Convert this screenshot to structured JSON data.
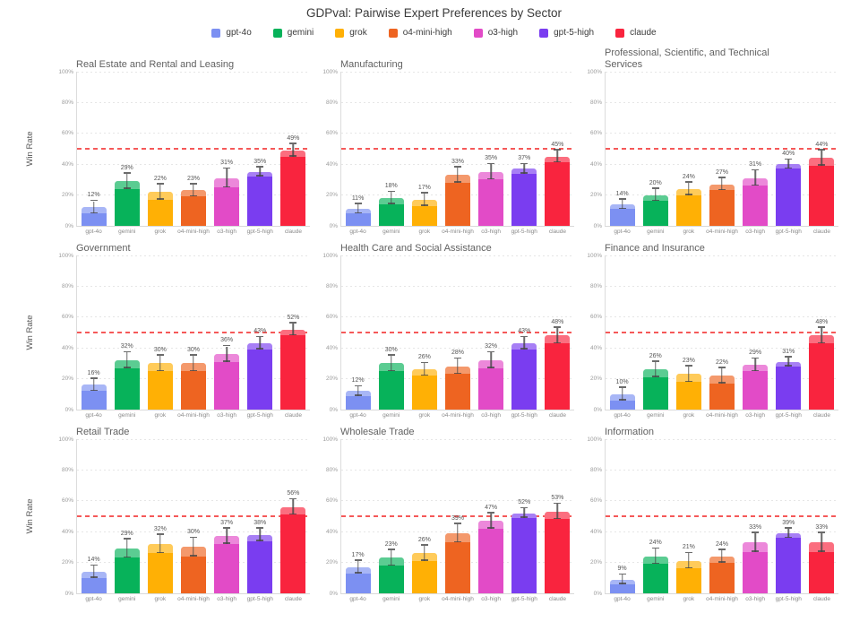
{
  "header": {
    "title": "GDPval: Pairwise Expert Preferences by Sector"
  },
  "legend": {
    "items": [
      {
        "label": "gpt-4o",
        "color": "#7C90F2"
      },
      {
        "label": "gemini",
        "color": "#07B25A"
      },
      {
        "label": "grok",
        "color": "#FFB005"
      },
      {
        "label": "o4-mini-high",
        "color": "#EE6421"
      },
      {
        "label": "o3-high",
        "color": "#E24BC7"
      },
      {
        "label": "gpt-5-high",
        "color": "#7A3DF0"
      },
      {
        "label": "claude",
        "color": "#F9243E"
      }
    ]
  },
  "colors": {
    "reference_line": "#F55959",
    "gridline": "#E6E6E6",
    "axis_line": "#DCDCDC",
    "tick_label": "#9B9B9B",
    "subplot_title": "#616161",
    "value_label": "#565656",
    "error_bar": "#464646"
  },
  "axes": {
    "y_label": "Win Rate",
    "y_ticks": [
      "0%",
      "20%",
      "40%",
      "60%",
      "80%",
      "100%"
    ],
    "y_lim": [
      0,
      100
    ],
    "reference_line_value": 50
  },
  "chart_data": [
    {
      "type": "bar",
      "title": "Real Estate and Rental and Leasing",
      "ylabel": "Win Rate",
      "ylim": [
        0,
        100
      ],
      "reference_line": 50,
      "grid": true,
      "categories": [
        "gpt-4o",
        "gemini",
        "grok",
        "o4-mini-high",
        "o3-high",
        "gpt-5-high",
        "claude"
      ],
      "values": [
        12,
        29,
        22,
        23,
        31,
        35,
        49
      ],
      "errors": [
        4,
        5,
        5,
        4,
        6,
        3,
        4
      ],
      "value_labels": [
        "12%",
        "29%",
        "22%",
        "23%",
        "31%",
        "35%",
        "49%"
      ]
    },
    {
      "type": "bar",
      "title": "Manufacturing",
      "ylabel": "Win Rate",
      "ylim": [
        0,
        100
      ],
      "reference_line": 50,
      "grid": true,
      "categories": [
        "gpt-4o",
        "gemini",
        "grok",
        "o4-mini-high",
        "o3-high",
        "gpt-5-high",
        "claude"
      ],
      "values": [
        11,
        18,
        17,
        33,
        35,
        37,
        45
      ],
      "errors": [
        3,
        4,
        4,
        5,
        5,
        3,
        4
      ],
      "value_labels": [
        "11%",
        "18%",
        "17%",
        "33%",
        "35%",
        "37%",
        "45%"
      ]
    },
    {
      "type": "bar",
      "title": "Professional, Scientific, and Technical Services",
      "ylabel": "Win Rate",
      "ylim": [
        0,
        100
      ],
      "reference_line": 50,
      "grid": true,
      "categories": [
        "gpt-4o",
        "gemini",
        "grok",
        "o4-mini-high",
        "o3-high",
        "gpt-5-high",
        "claude"
      ],
      "values": [
        14,
        20,
        24,
        27,
        31,
        40,
        44
      ],
      "errors": [
        3,
        4,
        4,
        4,
        5,
        3,
        5
      ],
      "value_labels": [
        "14%",
        "20%",
        "24%",
        "27%",
        "31%",
        "40%",
        "44%"
      ]
    },
    {
      "type": "bar",
      "title": "Government",
      "ylabel": "Win Rate",
      "ylim": [
        0,
        100
      ],
      "reference_line": 50,
      "grid": true,
      "categories": [
        "gpt-4o",
        "gemini",
        "grok",
        "o4-mini-high",
        "o3-high",
        "gpt-5-high",
        "claude"
      ],
      "values": [
        16,
        32,
        30,
        30,
        36,
        43,
        52
      ],
      "errors": [
        4,
        5,
        5,
        5,
        5,
        4,
        4
      ],
      "value_labels": [
        "16%",
        "32%",
        "30%",
        "30%",
        "36%",
        "43%",
        "52%"
      ]
    },
    {
      "type": "bar",
      "title": "Health Care and Social Assistance",
      "ylabel": "Win Rate",
      "ylim": [
        0,
        100
      ],
      "reference_line": 50,
      "grid": true,
      "categories": [
        "gpt-4o",
        "gemini",
        "grok",
        "o4-mini-high",
        "o3-high",
        "gpt-5-high",
        "claude"
      ],
      "values": [
        12,
        30,
        26,
        28,
        32,
        43,
        48
      ],
      "errors": [
        3,
        5,
        4,
        5,
        5,
        4,
        5
      ],
      "value_labels": [
        "12%",
        "30%",
        "26%",
        "28%",
        "32%",
        "43%",
        "48%"
      ]
    },
    {
      "type": "bar",
      "title": "Finance and Insurance",
      "ylabel": "Win Rate",
      "ylim": [
        0,
        100
      ],
      "reference_line": 50,
      "grid": true,
      "categories": [
        "gpt-4o",
        "gemini",
        "grok",
        "o4-mini-high",
        "o3-high",
        "gpt-5-high",
        "claude"
      ],
      "values": [
        10,
        26,
        23,
        22,
        29,
        31,
        48
      ],
      "errors": [
        4,
        5,
        5,
        5,
        4,
        3,
        5
      ],
      "value_labels": [
        "10%",
        "26%",
        "23%",
        "22%",
        "29%",
        "31%",
        "48%"
      ]
    },
    {
      "type": "bar",
      "title": "Retail Trade",
      "ylabel": "Win Rate",
      "ylim": [
        0,
        100
      ],
      "reference_line": 50,
      "grid": true,
      "categories": [
        "gpt-4o",
        "gemini",
        "grok",
        "o4-mini-high",
        "o3-high",
        "gpt-5-high",
        "claude"
      ],
      "values": [
        14,
        29,
        32,
        30,
        37,
        38,
        56
      ],
      "errors": [
        4,
        6,
        6,
        6,
        5,
        4,
        5
      ],
      "value_labels": [
        "14%",
        "29%",
        "32%",
        "30%",
        "37%",
        "38%",
        "56%"
      ]
    },
    {
      "type": "bar",
      "title": "Wholesale Trade",
      "ylabel": "Win Rate",
      "ylim": [
        0,
        100
      ],
      "reference_line": 50,
      "grid": true,
      "categories": [
        "gpt-4o",
        "gemini",
        "grok",
        "o4-mini-high",
        "o3-high",
        "gpt-5-high",
        "claude"
      ],
      "values": [
        17,
        23,
        26,
        39,
        47,
        52,
        53
      ],
      "errors": [
        4,
        5,
        5,
        6,
        5,
        3,
        5
      ],
      "value_labels": [
        "17%",
        "23%",
        "26%",
        "39%",
        "47%",
        "52%",
        "53%"
      ]
    },
    {
      "type": "bar",
      "title": "Information",
      "ylabel": "Win Rate",
      "ylim": [
        0,
        100
      ],
      "reference_line": 50,
      "grid": true,
      "categories": [
        "gpt-4o",
        "gemini",
        "grok",
        "o4-mini-high",
        "o3-high",
        "gpt-5-high",
        "claude"
      ],
      "values": [
        9,
        24,
        21,
        24,
        33,
        39,
        33
      ],
      "errors": [
        3,
        5,
        5,
        4,
        6,
        3,
        6
      ],
      "value_labels": [
        "9%",
        "24%",
        "21%",
        "24%",
        "33%",
        "39%",
        "33%"
      ]
    }
  ]
}
